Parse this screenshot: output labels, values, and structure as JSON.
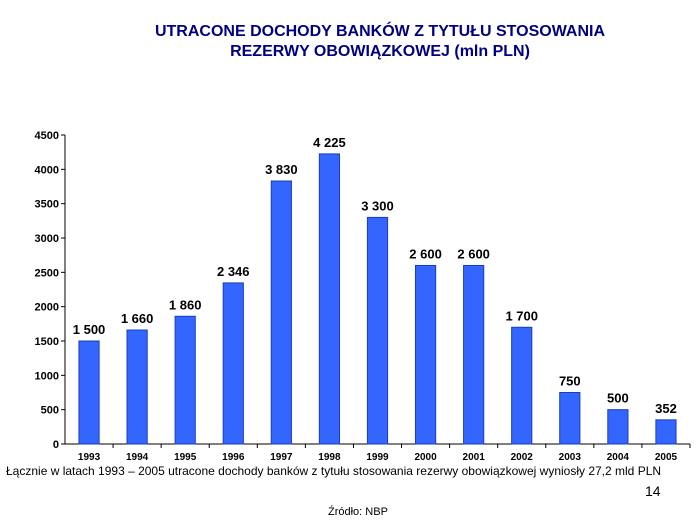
{
  "slide": {
    "title_line1": "UTRACONE DOCHODY BANKÓW Z TYTUŁU STOSOWANIA",
    "title_line2": "REZERWY OBOWIĄZKOWEJ (mln PLN)",
    "footnote": "Łącznie w latach 1993 – 2005 utracone dochody banków z tytułu stosowania rezerwy obowiązkowej wyniosły 27,2 mld PLN",
    "page_number": "14",
    "source": "Źródło: NBP"
  },
  "colors": {
    "bar": "#3366ff",
    "bar_border": "#1a3fb5",
    "title": "#000080"
  },
  "chart_data": {
    "type": "bar",
    "categories": [
      "1993",
      "1994",
      "1995",
      "1996",
      "1997",
      "1998",
      "1999",
      "2000",
      "2001",
      "2002",
      "2003",
      "2004",
      "2005"
    ],
    "values": [
      1500,
      1660,
      1860,
      2346,
      3830,
      4225,
      3300,
      2600,
      2600,
      1700,
      750,
      500,
      352
    ],
    "value_labels": [
      "1 500",
      "1 660",
      "1 860",
      "2 346",
      "3 830",
      "4 225",
      "3 300",
      "2 600",
      "2 600",
      "1 700",
      "750",
      "500",
      "352"
    ],
    "y_ticks": [
      0,
      500,
      1000,
      1500,
      2000,
      2500,
      3000,
      3500,
      4000,
      4500
    ],
    "ylim": [
      0,
      4500
    ],
    "title": "UTRACONE DOCHODY BANKÓW Z TYTUŁU STOSOWANIA REZERWY OBOWIĄZKOWEJ (mln PLN)",
    "xlabel": "",
    "ylabel": "",
    "grid": false,
    "legend": "none"
  }
}
